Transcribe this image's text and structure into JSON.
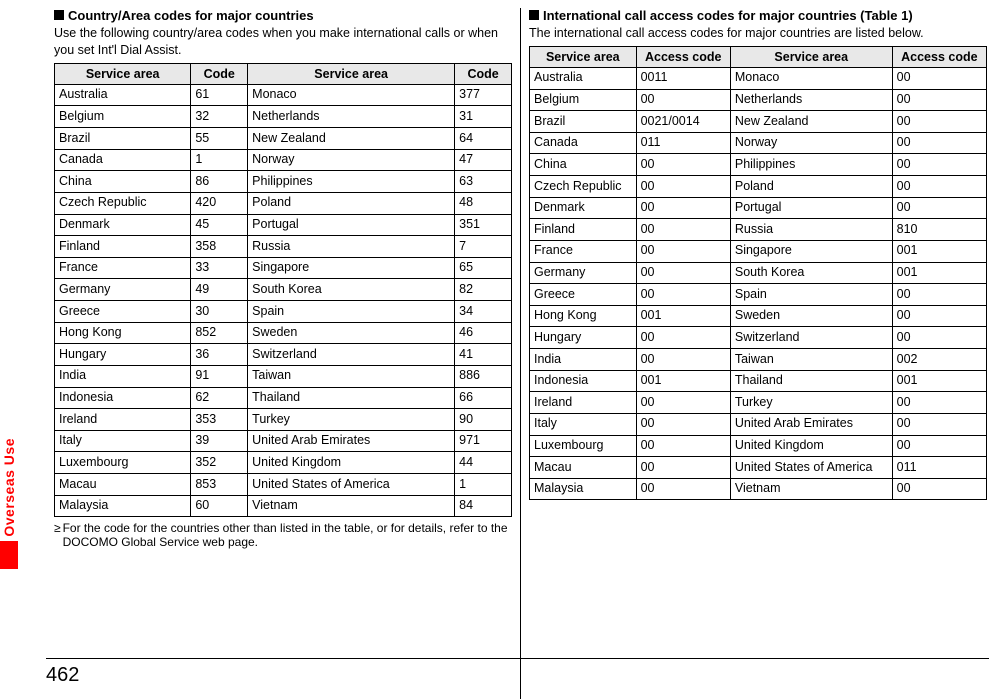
{
  "sidebar": {
    "label": "Overseas Use"
  },
  "page_number": "462",
  "left": {
    "title": "Country/Area codes for major countries",
    "subtitle": "Use the following country/area codes when you make international calls or when you set Int'l Dial Assist.",
    "headers": [
      "Service area",
      "Code",
      "Service area",
      "Code"
    ],
    "rows": [
      [
        "Australia",
        "61",
        "Monaco",
        "377"
      ],
      [
        "Belgium",
        "32",
        "Netherlands",
        "31"
      ],
      [
        "Brazil",
        "55",
        "New Zealand",
        "64"
      ],
      [
        "Canada",
        "1",
        "Norway",
        "47"
      ],
      [
        "China",
        "86",
        "Philippines",
        "63"
      ],
      [
        "Czech Republic",
        "420",
        "Poland",
        "48"
      ],
      [
        "Denmark",
        "45",
        "Portugal",
        "351"
      ],
      [
        "Finland",
        "358",
        "Russia",
        "7"
      ],
      [
        "France",
        "33",
        "Singapore",
        "65"
      ],
      [
        "Germany",
        "49",
        "South Korea",
        "82"
      ],
      [
        "Greece",
        "30",
        "Spain",
        "34"
      ],
      [
        "Hong Kong",
        "852",
        "Sweden",
        "46"
      ],
      [
        "Hungary",
        "36",
        "Switzerland",
        "41"
      ],
      [
        "India",
        "91",
        "Taiwan",
        "886"
      ],
      [
        "Indonesia",
        "62",
        "Thailand",
        "66"
      ],
      [
        "Ireland",
        "353",
        "Turkey",
        "90"
      ],
      [
        "Italy",
        "39",
        "United Arab Emirates",
        "971"
      ],
      [
        "Luxembourg",
        "352",
        "United Kingdom",
        "44"
      ],
      [
        "Macau",
        "853",
        "United States of America",
        "1"
      ],
      [
        "Malaysia",
        "60",
        "Vietnam",
        "84"
      ]
    ],
    "note": "For the code for the countries other than listed in the table, or for details, refer to the DOCOMO Global Service web page."
  },
  "right": {
    "title": "International call access codes for major countries (Table 1)",
    "subtitle": "The international call access codes for major countries are listed below.",
    "headers": [
      "Service area",
      "Access code",
      "Service area",
      "Access code"
    ],
    "rows": [
      [
        "Australia",
        "0011",
        "Monaco",
        "00"
      ],
      [
        "Belgium",
        "00",
        "Netherlands",
        "00"
      ],
      [
        "Brazil",
        "0021/0014",
        "New Zealand",
        "00"
      ],
      [
        "Canada",
        "011",
        "Norway",
        "00"
      ],
      [
        "China",
        "00",
        "Philippines",
        "00"
      ],
      [
        "Czech Republic",
        "00",
        "Poland",
        "00"
      ],
      [
        "Denmark",
        "00",
        "Portugal",
        "00"
      ],
      [
        "Finland",
        "00",
        "Russia",
        "810"
      ],
      [
        "France",
        "00",
        "Singapore",
        "001"
      ],
      [
        "Germany",
        "00",
        "South Korea",
        "001"
      ],
      [
        "Greece",
        "00",
        "Spain",
        "00"
      ],
      [
        "Hong Kong",
        "001",
        "Sweden",
        "00"
      ],
      [
        "Hungary",
        "00",
        "Switzerland",
        "00"
      ],
      [
        "India",
        "00",
        "Taiwan",
        "002"
      ],
      [
        "Indonesia",
        "001",
        "Thailand",
        "001"
      ],
      [
        "Ireland",
        "00",
        "Turkey",
        "00"
      ],
      [
        "Italy",
        "00",
        "United Arab Emirates",
        "00"
      ],
      [
        "Luxembourg",
        "00",
        "United Kingdom",
        "00"
      ],
      [
        "Macau",
        "00",
        "United States of America",
        "011"
      ],
      [
        "Malaysia",
        "00",
        "Vietnam",
        "00"
      ]
    ]
  }
}
